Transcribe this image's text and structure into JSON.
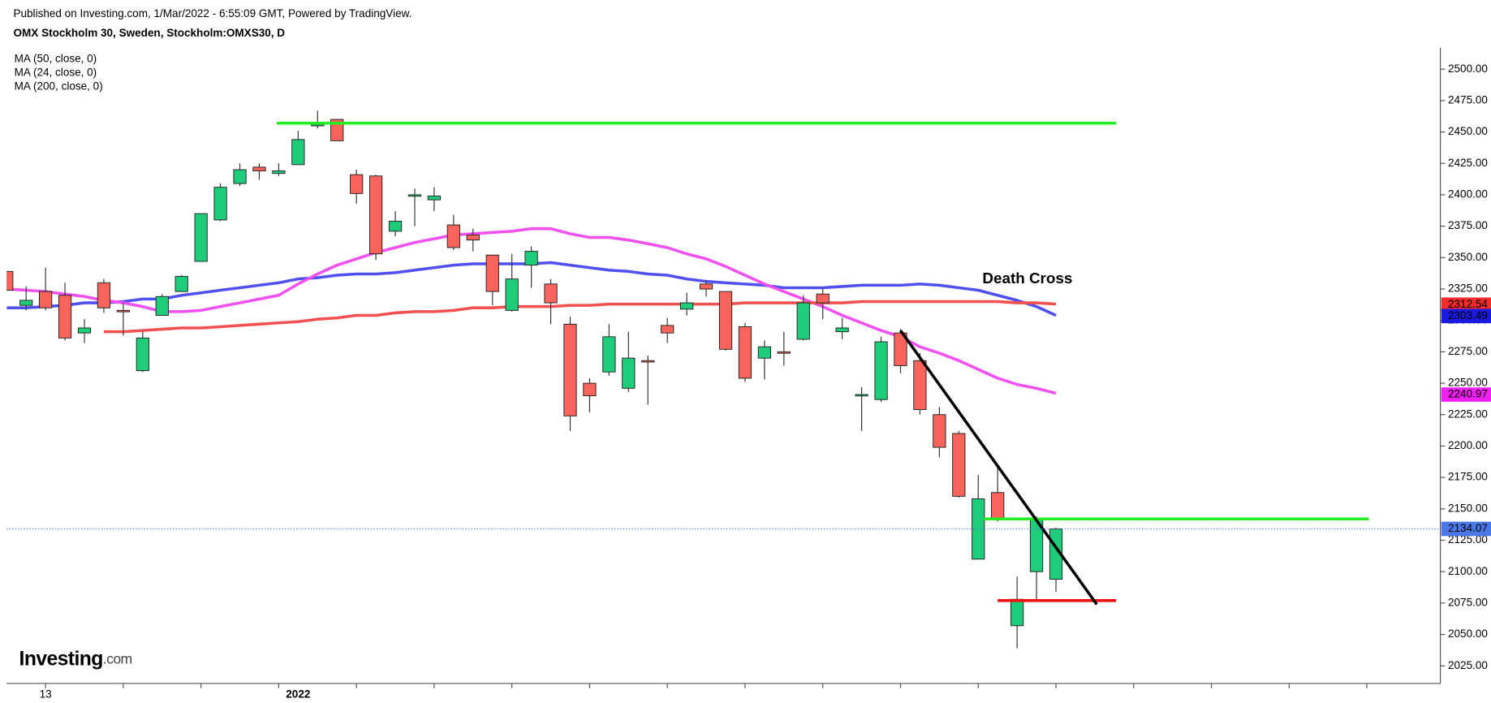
{
  "header": {
    "published": "Published on Investing.com, 1/Mar/2022 - 6:55:09 GMT, Powered by TradingView.",
    "instrument": "OMX Stockholm 30, Sweden, Stockholm:OMXS30, D"
  },
  "logo": {
    "brand": "Investing",
    "suffix": ".com"
  },
  "chart_data": {
    "type": "candlestick",
    "categories": [
      null,
      null,
      "13",
      null,
      null,
      null,
      null,
      null,
      null,
      null,
      null,
      null,
      null,
      null,
      null,
      "2022",
      null,
      null,
      null,
      null,
      null,
      null,
      null,
      null,
      null,
      null,
      null,
      null,
      null,
      null,
      null,
      null,
      null,
      null,
      null,
      null,
      null,
      null,
      null,
      null,
      null,
      null,
      null,
      null,
      null,
      null,
      null,
      null,
      null,
      null,
      null,
      null,
      null,
      null,
      null
    ],
    "open": [
      2339,
      2312,
      2323,
      2320,
      2290,
      2330,
      2308,
      2260,
      2304,
      2323,
      2347,
      2380,
      2409,
      2422,
      2417,
      2424,
      2455,
      2460,
      2416,
      2415,
      2371,
      2399,
      2396,
      2376,
      2368,
      2352,
      2308,
      2344,
      2329,
      2297,
      2250,
      2259,
      2246,
      2268,
      2296,
      2309,
      2329,
      2323,
      2295,
      2270,
      2275,
      2285,
      2321,
      2291,
      2240,
      2237,
      2290,
      2268,
      2225,
      2210,
      2110,
      2163,
      2057,
      2100,
      2094
    ],
    "high": [
      2339,
      2327,
      2342,
      2330,
      2301,
      2333,
      2314,
      2291,
      2321,
      2336,
      2385,
      2409,
      2425,
      2425,
      2425,
      2451,
      2467,
      2460,
      2420,
      2416,
      2387,
      2405,
      2406,
      2384,
      2373,
      2352,
      2353,
      2359,
      2333,
      2303,
      2254,
      2297,
      2291,
      2272,
      2302,
      2322,
      2332,
      2323,
      2298,
      2284,
      2291,
      2320,
      2325,
      2302,
      2247,
      2287,
      2293,
      2274,
      2231,
      2212,
      2177,
      2183,
      2096,
      2144,
      2135
    ],
    "low": [
      2324,
      2308,
      2308,
      2284,
      2282,
      2306,
      2288,
      2259,
      2304,
      2323,
      2347,
      2379,
      2407,
      2412,
      2415,
      2424,
      2453,
      2443,
      2393,
      2348,
      2367,
      2375,
      2387,
      2356,
      2355,
      2312,
      2307,
      2326,
      2297,
      2212,
      2227,
      2256,
      2243,
      2233,
      2282,
      2304,
      2319,
      2276,
      2251,
      2253,
      2264,
      2284,
      2301,
      2285,
      2212,
      2235,
      2258,
      2225,
      2191,
      2159,
      2110,
      2140,
      2039,
      2078,
      2084
    ],
    "close": [
      2324,
      2316,
      2310,
      2286,
      2294,
      2310,
      2307,
      2286,
      2319,
      2335,
      2385,
      2406,
      2420,
      2419,
      2419,
      2444,
      2456,
      2443,
      2401,
      2353,
      2379,
      2400,
      2399,
      2358,
      2364,
      2323,
      2333,
      2355,
      2314,
      2224,
      2240,
      2287,
      2270,
      2267,
      2290,
      2314,
      2325,
      2277,
      2254,
      2279,
      2274,
      2314,
      2314,
      2294,
      2241,
      2283,
      2264,
      2229,
      2199,
      2160,
      2158,
      2142,
      2078,
      2142,
      2134
    ],
    "up_color": "#1fcc7a",
    "down_color": "#f8645c",
    "series": [
      {
        "name": "MA (50, close, 0)",
        "color": "#5050f0",
        "values": [
          2310,
          2310,
          2311,
          2312,
          2314,
          2314,
          2315,
          2317,
          2317,
          2320,
          2322,
          2324,
          2326,
          2328,
          2330,
          2333,
          2334,
          2336,
          2337,
          2337,
          2338,
          2340,
          2342,
          2344,
          2345,
          2345,
          2345,
          2345,
          2346,
          2344,
          2342,
          2340,
          2339,
          2337,
          2336,
          2333,
          2331,
          2330,
          2329,
          2328,
          2326,
          2326,
          2326,
          2327,
          2328,
          2328,
          2328,
          2329,
          2328,
          2326,
          2324,
          2320,
          2316,
          2311,
          2304
        ]
      },
      {
        "name": "MA (24, close, 0)",
        "color": "#f050f0",
        "values": [
          2325,
          2324,
          2323,
          2321,
          2319,
          2316,
          2314,
          2311,
          2307,
          2307,
          2308,
          2311,
          2314,
          2317,
          2320,
          2329,
          2337,
          2344,
          2349,
          2354,
          2358,
          2362,
          2365,
          2368,
          2369,
          2370,
          2371,
          2373,
          2373,
          2369,
          2366,
          2366,
          2364,
          2361,
          2358,
          2353,
          2349,
          2343,
          2336,
          2329,
          2323,
          2317,
          2311,
          2304,
          2298,
          2292,
          2287,
          2279,
          2274,
          2268,
          2261,
          2254,
          2249,
          2246,
          2242
        ]
      },
      {
        "name": "MA (200, close, 0)",
        "color": "#f05050",
        "values": [
          null,
          null,
          null,
          null,
          null,
          2291,
          2291,
          2292,
          2293,
          2294,
          2294,
          2295,
          2296,
          2297,
          2298,
          2299,
          2301,
          2302,
          2304,
          2304,
          2306,
          2307,
          2307,
          2308,
          2310,
          2310,
          2311,
          2311,
          2311,
          2312,
          2312,
          2313,
          2313,
          2313,
          2313,
          2313,
          2313,
          2313,
          2314,
          2314,
          2314,
          2314,
          2314,
          2314,
          2315,
          2315,
          2315,
          2315,
          2315,
          2315,
          2315,
          2315,
          2314,
          2314,
          2313
        ]
      }
    ],
    "ylim": [
      2011,
      2517
    ],
    "yticks": [
      {
        "value": 2025,
        "label": "2025.00"
      },
      {
        "value": 2050,
        "label": "2050.00"
      },
      {
        "value": 2075,
        "label": "2075.00"
      },
      {
        "value": 2100,
        "label": "2100.00"
      },
      {
        "value": 2125,
        "label": "2125.00"
      },
      {
        "value": 2150,
        "label": "2150.00"
      },
      {
        "value": 2175,
        "label": "2175.00"
      },
      {
        "value": 2200,
        "label": "2200.00"
      },
      {
        "value": 2225,
        "label": "2225.00"
      },
      {
        "value": 2250,
        "label": "2250.00"
      },
      {
        "value": 2275,
        "label": "2275.00"
      },
      {
        "value": 2300,
        "label": "2300.00"
      },
      {
        "value": 2325,
        "label": "2325.00"
      },
      {
        "value": 2350,
        "label": "2350.00"
      },
      {
        "value": 2375,
        "label": "2375.00"
      },
      {
        "value": 2400,
        "label": "2400.00"
      },
      {
        "value": 2425,
        "label": "2425.00"
      },
      {
        "value": 2450,
        "label": "2450.00"
      },
      {
        "value": 2475,
        "label": "2475.00"
      },
      {
        "value": 2500,
        "label": "2500.00"
      }
    ],
    "price_labels": [
      {
        "value": 2312.54,
        "color": "#f22c2c"
      },
      {
        "value": 2303.49,
        "color": "#1a1ae0"
      },
      {
        "value": 2240.97,
        "color": "#f020f0"
      },
      {
        "value": 2134.07,
        "color": "#4a78e8"
      }
    ],
    "drawings": [
      {
        "color": "#22ee22",
        "x": [
          13.9,
          57.1
        ],
        "y": [
          2457,
          2457
        ]
      },
      {
        "color": "#22ee22",
        "x": [
          50.3,
          70.1
        ],
        "y": [
          2142,
          2142
        ]
      },
      {
        "color": "#ee1111",
        "x": [
          51,
          57.1
        ],
        "y": [
          2077,
          2077
        ]
      },
      {
        "color": "#000000",
        "x": [
          46,
          56.1
        ],
        "y": [
          2292,
          2074
        ]
      }
    ],
    "annotation": "Death Cross"
  }
}
